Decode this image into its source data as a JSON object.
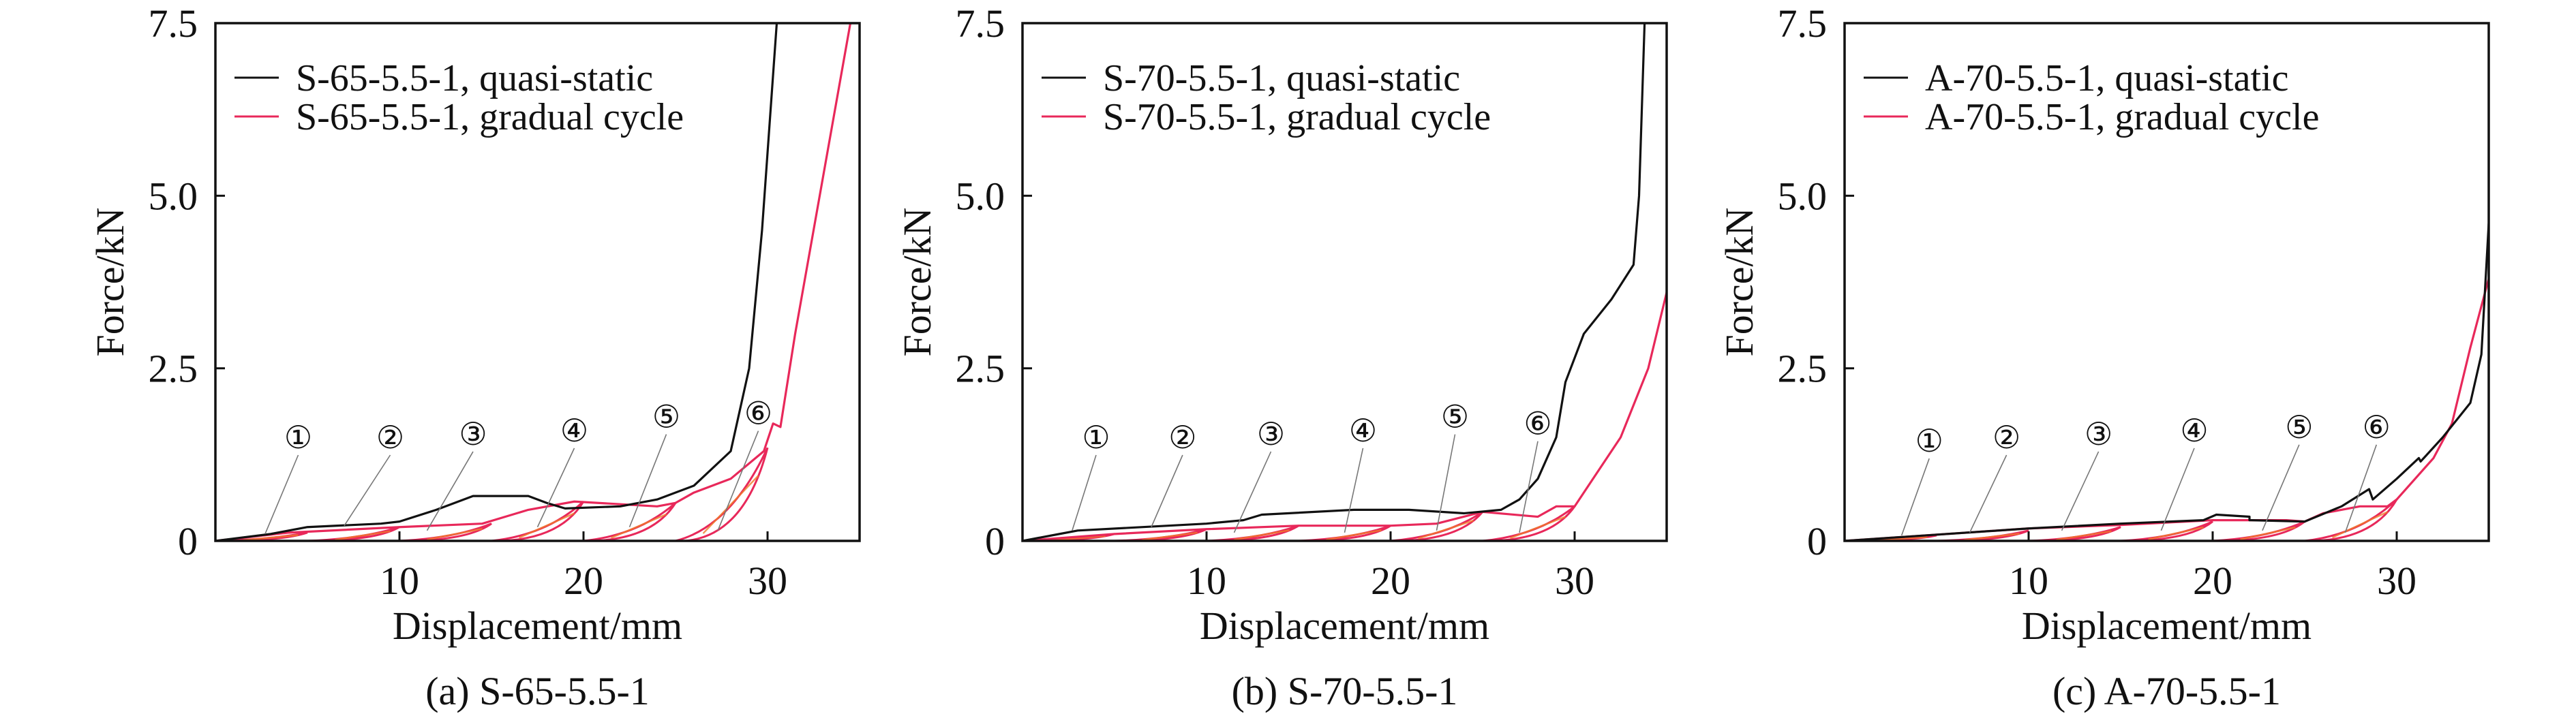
{
  "chart_data": [
    {
      "type": "line",
      "caption": "(a) S-65-5.5-1",
      "xlabel": "Displacement/mm",
      "ylabel": "Force/kN",
      "xlim": [
        0,
        35
      ],
      "ylim": [
        0,
        7.5
      ],
      "xticks": [
        10,
        20,
        30
      ],
      "yticks": [
        0,
        2.5,
        5.0,
        7.5
      ],
      "ytick_labels": [
        "0",
        "2.5",
        "5.0",
        "7.5"
      ],
      "legend_position": "top-left",
      "annotations": [
        "①",
        "②",
        "③",
        "④",
        "⑤",
        "⑥"
      ],
      "series": [
        {
          "name": "S-65-5.5-1, quasi-static",
          "color": "#111111",
          "x": [
            0,
            3,
            5,
            9,
            10,
            12,
            14,
            17,
            18,
            19,
            22,
            24,
            26,
            28,
            29,
            29.7,
            30.5
          ],
          "y": [
            0,
            0.1,
            0.2,
            0.25,
            0.28,
            0.45,
            0.65,
            0.65,
            0.55,
            0.47,
            0.5,
            0.6,
            0.8,
            1.3,
            2.5,
            4.5,
            7.5
          ]
        },
        {
          "name": "S-65-5.5-1, gradual cycle",
          "color": "#e8285a",
          "x": [
            0,
            4,
            10,
            14.5,
            17,
            19.5,
            24,
            25,
            26,
            28,
            29.8,
            30.3,
            30.7,
            31.5,
            32.5,
            33.5,
            34.5
          ],
          "y": [
            0,
            0.12,
            0.2,
            0.25,
            0.45,
            0.57,
            0.5,
            0.55,
            0.7,
            0.9,
            1.3,
            1.7,
            1.65,
            3,
            4.5,
            6,
            7.5
          ],
          "cycles": [
            [
              0,
              5,
              0.12
            ],
            [
              5,
              10,
              0.2
            ],
            [
              10,
              15,
              0.25
            ],
            [
              15,
              20,
              0.57
            ],
            [
              20,
              25,
              0.55
            ],
            [
              25,
              30,
              1.35
            ]
          ]
        }
      ]
    },
    {
      "type": "line",
      "caption": "(b) S-70-5.5-1",
      "xlabel": "Displacement/mm",
      "ylabel": "Force/kN",
      "xlim": [
        0,
        35
      ],
      "ylim": [
        0,
        7.5
      ],
      "xticks": [
        10,
        20,
        30
      ],
      "yticks": [
        0,
        2.5,
        5.0,
        7.5
      ],
      "ytick_labels": [
        "0",
        "2.5",
        "5.0",
        "7.5"
      ],
      "legend_position": "top-left",
      "annotations": [
        "①",
        "②",
        "③",
        "④",
        "⑤",
        "⑥"
      ],
      "series": [
        {
          "name": "S-70-5.5-1, quasi-static",
          "color": "#111111",
          "x": [
            0,
            2,
            3,
            10,
            12,
            13,
            18,
            21,
            24,
            26,
            27,
            28,
            29,
            29.5,
            30.5,
            32,
            33.2,
            33.5,
            33.8
          ],
          "y": [
            0,
            0.1,
            0.15,
            0.25,
            0.3,
            0.38,
            0.45,
            0.45,
            0.4,
            0.45,
            0.6,
            0.9,
            1.5,
            2.3,
            3.0,
            3.5,
            4.0,
            5.0,
            7.5
          ]
        },
        {
          "name": "S-70-5.5-1, gradual cycle",
          "color": "#e8285a",
          "x": [
            0,
            5,
            10,
            15,
            20,
            22.5,
            25,
            28,
            29,
            30,
            31,
            32.5,
            34,
            35
          ],
          "y": [
            0,
            0.1,
            0.17,
            0.22,
            0.22,
            0.25,
            0.42,
            0.35,
            0.5,
            0.5,
            0.9,
            1.5,
            2.5,
            3.6
          ],
          "cycles": [
            [
              0,
              5,
              0.1
            ],
            [
              5,
              10,
              0.17
            ],
            [
              10,
              15,
              0.22
            ],
            [
              15,
              20,
              0.22
            ],
            [
              20,
              25,
              0.42
            ],
            [
              25,
              30,
              0.5
            ]
          ]
        }
      ]
    },
    {
      "type": "line",
      "caption": "(c) A-70-5.5-1",
      "xlabel": "Displacement/mm",
      "ylabel": "Force/kN",
      "xlim": [
        0,
        35
      ],
      "ylim": [
        0,
        7.5
      ],
      "xticks": [
        10,
        20,
        30
      ],
      "yticks": [
        0,
        2.5,
        5.0,
        7.5
      ],
      "ytick_labels": [
        "0",
        "2.5",
        "5.0",
        "7.5"
      ],
      "legend_position": "top-left",
      "annotations": [
        "①",
        "②",
        "③",
        "④",
        "⑤",
        "⑥"
      ],
      "series": [
        {
          "name": "A-70-5.5-1, quasi-static",
          "color": "#111111",
          "x": [
            0,
            10,
            15,
            19.5,
            20.2,
            22,
            22,
            25,
            27,
            28.5,
            28.7,
            30,
            31.2,
            31.3,
            32.5,
            34,
            34.6,
            35
          ],
          "y": [
            0,
            0.18,
            0.25,
            0.3,
            0.38,
            0.35,
            0.3,
            0.28,
            0.5,
            0.75,
            0.6,
            0.9,
            1.2,
            1.15,
            1.5,
            2.0,
            2.7,
            4.6
          ]
        },
        {
          "name": "A-70-5.5-1, gradual cycle",
          "color": "#e8285a",
          "x": [
            0,
            10,
            15,
            20,
            24,
            25,
            26,
            28,
            29.5,
            30,
            31,
            32,
            33,
            34,
            35
          ],
          "y": [
            0,
            0.18,
            0.23,
            0.3,
            0.3,
            0.28,
            0.4,
            0.5,
            0.5,
            0.6,
            0.9,
            1.2,
            1.7,
            2.8,
            3.8
          ],
          "cycles": [
            [
              0,
              5,
              0.08
            ],
            [
              5,
              10,
              0.15
            ],
            [
              10,
              15,
              0.2
            ],
            [
              15,
              20,
              0.28
            ],
            [
              20,
              25,
              0.28
            ],
            [
              25,
              30,
              0.6
            ]
          ]
        }
      ]
    }
  ]
}
